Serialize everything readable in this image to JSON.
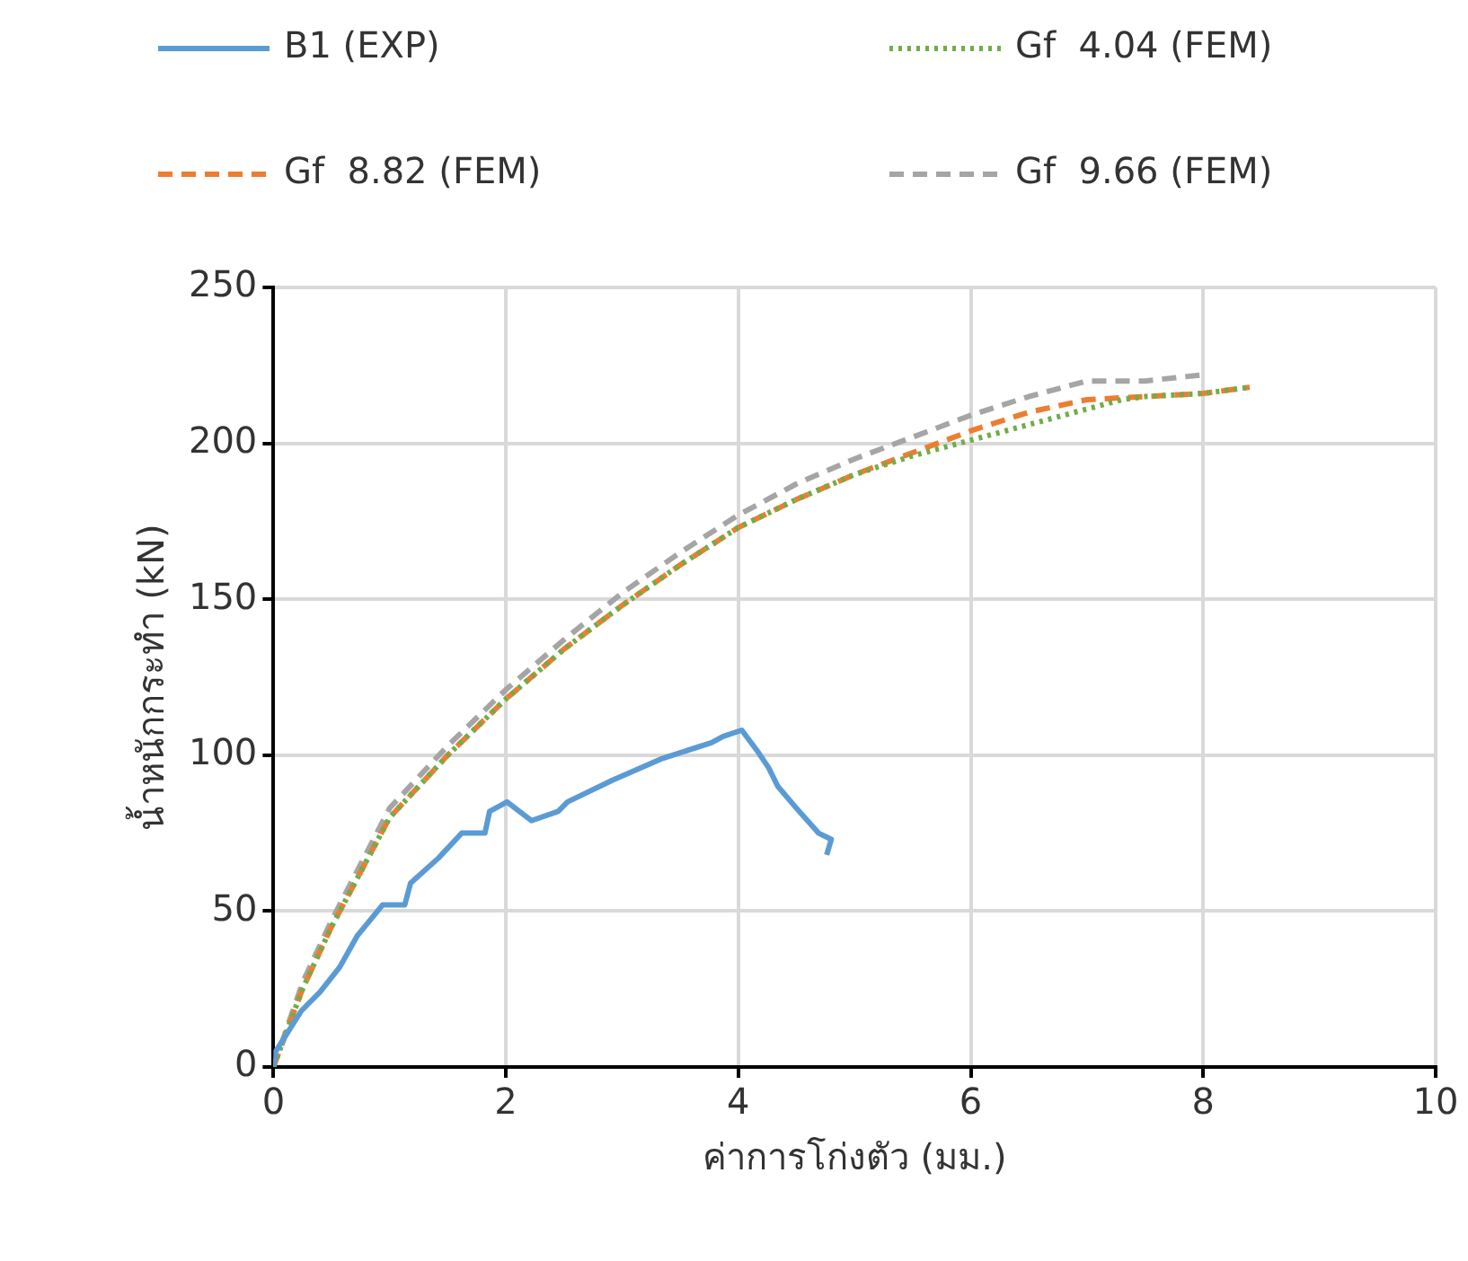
{
  "chart_data": {
    "type": "line",
    "xlabel": "ค่าการโก่งตัว (มม.)",
    "ylabel": "น้ำหนักกระทำ (kN)",
    "xlim": [
      0,
      10
    ],
    "xticks": [
      0,
      2,
      4,
      6,
      8,
      10
    ],
    "ylim": [
      0,
      250
    ],
    "yticks": [
      0,
      50,
      100,
      150,
      200,
      250
    ],
    "grid": true,
    "legend": "top",
    "marker": "none",
    "series": [
      {
        "name": "B1 (EXP)",
        "color": "#5b9bd5",
        "line_style": "solid",
        "x": [
          0,
          0.02,
          0.24,
          0.4,
          0.57,
          0.72,
          0.94,
          1.13,
          1.18,
          1.42,
          1.62,
          1.82,
          1.86,
          2.01,
          2.22,
          2.45,
          2.53,
          2.92,
          3.35,
          3.77,
          3.87,
          4.03,
          4.17,
          4.26,
          4.34,
          4.5,
          4.69,
          4.8,
          4.76
        ],
        "values": [
          0,
          5,
          18,
          24,
          32,
          42,
          52,
          52,
          59,
          67,
          75,
          75,
          82,
          85,
          79,
          82,
          85,
          92,
          99,
          104,
          106,
          108,
          101,
          96,
          90,
          83,
          75,
          73,
          68
        ]
      },
      {
        "name": "Gf  4.04 (FEM)",
        "color": "#70ad47",
        "line_style": "dotted",
        "x": [
          0,
          0.25,
          0.5,
          1,
          1.5,
          2,
          2.5,
          3,
          3.5,
          4,
          4.5,
          5,
          5.5,
          6,
          6.5,
          7,
          7.3,
          7.5,
          8,
          8.4
        ],
        "values": [
          0,
          25,
          45,
          80,
          100,
          118,
          134,
          148,
          161,
          173,
          182,
          190,
          196,
          201,
          206,
          211,
          214,
          215,
          216,
          218
        ]
      },
      {
        "name": "Gf  8.82 (FEM)",
        "color": "#ed7d31",
        "line_style": "dashed",
        "x": [
          0,
          0.25,
          0.5,
          1,
          1.5,
          2,
          2.5,
          3,
          3.5,
          4,
          4.5,
          5,
          5.5,
          6,
          6.5,
          7,
          7.5,
          8,
          8.4
        ],
        "values": [
          0,
          25,
          45,
          80,
          100,
          118,
          134,
          148,
          161,
          173,
          182,
          190,
          197,
          204,
          210,
          214,
          215,
          216,
          218
        ]
      },
      {
        "name": "Gf  9.66 (FEM)",
        "color": "#a5a5a5",
        "line_style": "dashed",
        "x": [
          0,
          0.25,
          0.5,
          1,
          1.5,
          2,
          2.5,
          3,
          3.5,
          4,
          4.5,
          5,
          5.5,
          6,
          6.5,
          7,
          7.5,
          8
        ],
        "values": [
          0,
          27,
          47,
          83,
          103,
          121,
          137,
          152,
          165,
          177,
          187,
          195,
          202,
          209,
          215,
          220,
          220,
          222
        ]
      }
    ]
  }
}
